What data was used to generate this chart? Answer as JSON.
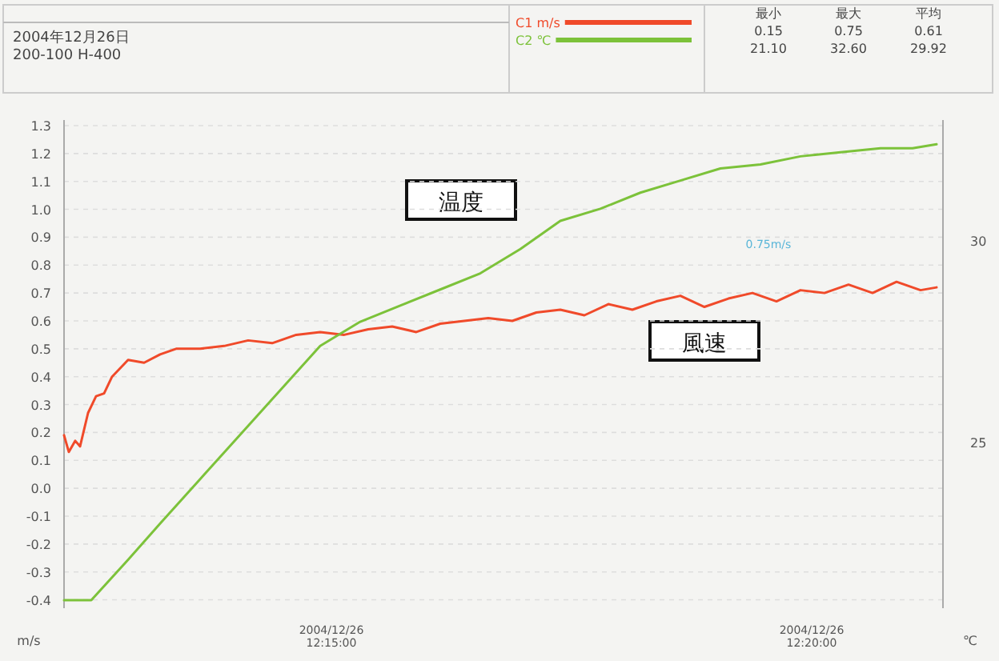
{
  "chart_data": {
    "type": "line",
    "ylabel": "m/s",
    "y2label": "℃",
    "xlim": [
      "2004-12-26T12:12:13",
      "2004-12-26T12:21:22"
    ],
    "xticks": [
      {
        "value": "2004-12-26T12:15:00",
        "label": "2004/12/26\n12:15:00"
      },
      {
        "value": "2004-12-26T12:20:00",
        "label": "2004/12/26\n12:20:00"
      }
    ],
    "ylim": [
      -0.43,
      1.32
    ],
    "yticks": [
      {
        "value": 1.3,
        "label": "1.3"
      },
      {
        "value": 1.2,
        "label": "1.2"
      },
      {
        "value": 1.1,
        "label": "1.1"
      },
      {
        "value": 1.0,
        "label": "1.0"
      },
      {
        "value": 0.9,
        "label": "0.9"
      },
      {
        "value": 0.8,
        "label": "0.8"
      },
      {
        "value": 0.7,
        "label": "0.7"
      },
      {
        "value": 0.6,
        "label": "0.6"
      },
      {
        "value": 0.5,
        "label": "0.5"
      },
      {
        "value": 0.4,
        "label": "0.4"
      },
      {
        "value": 0.3,
        "label": "0.3"
      },
      {
        "value": 0.2,
        "label": "0.2"
      },
      {
        "value": 0.1,
        "label": "0.1"
      },
      {
        "value": 0,
        "label": "0.0"
      },
      {
        "value": -0.1,
        "label": "-0.1"
      },
      {
        "value": -0.2,
        "label": "-0.2"
      },
      {
        "value": -0.3,
        "label": "-0.3"
      },
      {
        "value": -0.4,
        "label": "-0.4"
      }
    ],
    "y2lim": [
      20.9,
      33.0
    ],
    "y2ticks": [
      25,
      30
    ],
    "grid": "y",
    "legend": "top right",
    "series": [
      {
        "name": "C1 m/s",
        "color": "#f04a2a",
        "x": [
          "2004-12-26T12:12:13",
          "2004-12-26T12:12:16",
          "2004-12-26T12:12:20",
          "2004-12-26T12:12:23",
          "2004-12-26T12:12:28",
          "2004-12-26T12:12:33",
          "2004-12-26T12:12:38",
          "2004-12-26T12:12:43",
          "2004-12-26T12:12:48",
          "2004-12-26T12:12:53",
          "2004-12-26T12:13:03",
          "2004-12-26T12:13:13",
          "2004-12-26T12:13:23",
          "2004-12-26T12:13:38",
          "2004-12-26T12:13:53",
          "2004-12-26T12:14:08",
          "2004-12-26T12:14:23",
          "2004-12-26T12:14:38",
          "2004-12-26T12:14:53",
          "2004-12-26T12:15:08",
          "2004-12-26T12:15:23",
          "2004-12-26T12:15:38",
          "2004-12-26T12:15:53",
          "2004-12-26T12:16:08",
          "2004-12-26T12:16:23",
          "2004-12-26T12:16:38",
          "2004-12-26T12:16:53",
          "2004-12-26T12:17:08",
          "2004-12-26T12:17:23",
          "2004-12-26T12:17:38",
          "2004-12-26T12:17:53",
          "2004-12-26T12:18:08",
          "2004-12-26T12:18:23",
          "2004-12-26T12:18:38",
          "2004-12-26T12:18:53",
          "2004-12-26T12:19:08",
          "2004-12-26T12:19:23",
          "2004-12-26T12:19:38",
          "2004-12-26T12:19:53",
          "2004-12-26T12:20:08",
          "2004-12-26T12:20:23",
          "2004-12-26T12:20:38",
          "2004-12-26T12:20:53",
          "2004-12-26T12:21:08",
          "2004-12-26T12:21:18"
        ],
        "values": [
          0.19,
          0.13,
          0.17,
          0.15,
          0.27,
          0.33,
          0.34,
          0.4,
          0.43,
          0.46,
          0.45,
          0.48,
          0.5,
          0.5,
          0.51,
          0.53,
          0.52,
          0.55,
          0.56,
          0.55,
          0.57,
          0.58,
          0.56,
          0.59,
          0.6,
          0.61,
          0.6,
          0.63,
          0.64,
          0.62,
          0.66,
          0.64,
          0.67,
          0.69,
          0.65,
          0.68,
          0.7,
          0.67,
          0.71,
          0.7,
          0.73,
          0.7,
          0.74,
          0.71,
          0.72
        ]
      },
      {
        "name": "C2 ℃",
        "color": "#7cc23a",
        "axis": "y2",
        "x": [
          "2004-12-26T12:12:13",
          "2004-12-26T12:12:30",
          "2004-12-26T12:12:53",
          "2004-12-26T12:13:13",
          "2004-12-26T12:13:38",
          "2004-12-26T12:14:03",
          "2004-12-26T12:14:28",
          "2004-12-26T12:14:53",
          "2004-12-26T12:15:18",
          "2004-12-26T12:15:43",
          "2004-12-26T12:16:08",
          "2004-12-26T12:16:33",
          "2004-12-26T12:16:58",
          "2004-12-26T12:17:23",
          "2004-12-26T12:17:48",
          "2004-12-26T12:18:13",
          "2004-12-26T12:18:38",
          "2004-12-26T12:19:03",
          "2004-12-26T12:19:28",
          "2004-12-26T12:19:53",
          "2004-12-26T12:20:18",
          "2004-12-26T12:20:43",
          "2004-12-26T12:21:03",
          "2004-12-26T12:21:18"
        ],
        "values": [
          21.1,
          21.1,
          22.1,
          23.0,
          24.1,
          25.2,
          26.3,
          27.4,
          28.0,
          28.4,
          28.8,
          29.2,
          29.8,
          30.5,
          30.8,
          31.2,
          31.5,
          31.8,
          31.9,
          32.1,
          32.2,
          32.3,
          32.3,
          32.4
        ]
      }
    ],
    "annotations": [
      "2004年12月26日",
      "200-100 H-400",
      "最小",
      "最大",
      "平均",
      "0.15",
      "0.75",
      "0.61",
      "21.10",
      "32.60",
      "29.92",
      "温度",
      "風速",
      "0.75m/s"
    ]
  }
}
